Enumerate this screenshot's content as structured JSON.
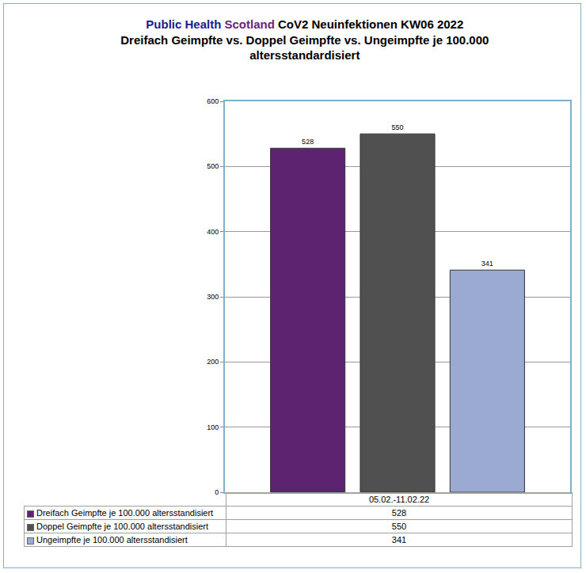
{
  "chart_data": {
    "type": "bar",
    "title": "Public Health Scotland CoV2 Neuinfektionen KW06 2022",
    "subtitle": "Dreifach Geimpfte vs. Doppel Geimpfte vs. Ungeimpfte je 100.000 altersstandardisiert",
    "categories": [
      "05.02.-11.02.22"
    ],
    "series": [
      {
        "name": "Dreifach Geimpfte je 100.000 altersstandisiert",
        "color": "#5c2470",
        "values": [
          528
        ]
      },
      {
        "name": "Doppel Geimpfte je 100.000 altersstandisiert",
        "color": "#505050",
        "values": [
          550
        ]
      },
      {
        "name": "Ungeimpfte je 100.000 altersstandisiert",
        "color": "#9aaad0",
        "values": [
          341
        ]
      }
    ],
    "ylim": [
      0,
      600
    ],
    "yticks": [
      0,
      100,
      200,
      300,
      400,
      500,
      600
    ],
    "grid": true,
    "data_labels": true,
    "tick_labels": "y"
  }
}
